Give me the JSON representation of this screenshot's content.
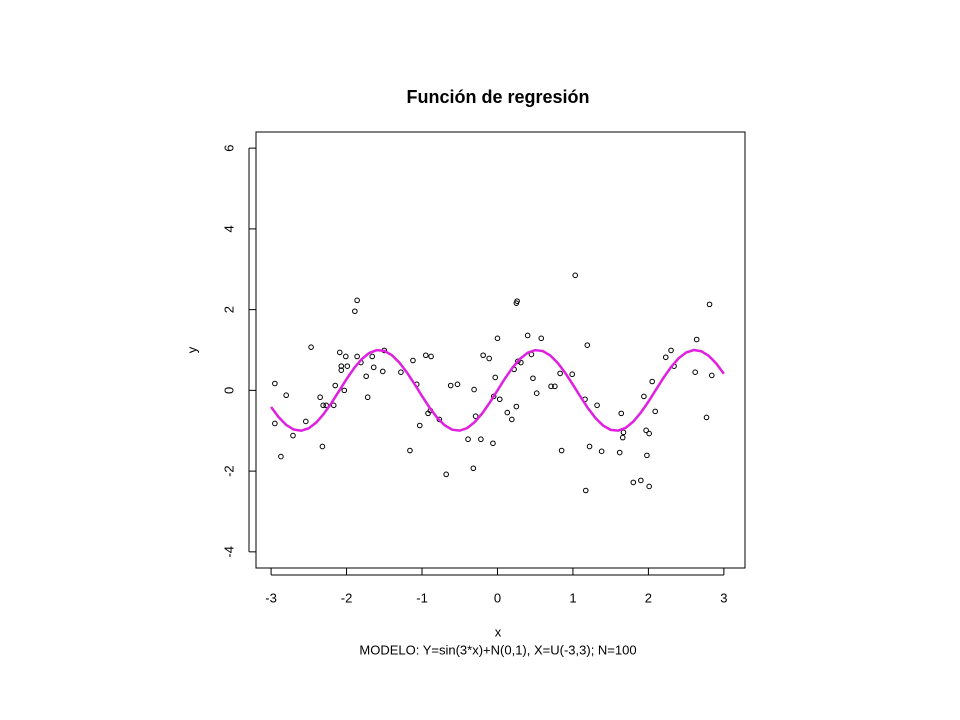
{
  "chart_data": {
    "type": "scatter",
    "title": "Función de regresión",
    "x_label": "x",
    "y_label": "y",
    "subtitle": "MODELO: Y=sin(3*x)+N(0,1), X=U(-3,3);  N=100",
    "xlim": [
      -3.2,
      3.28
    ],
    "ylim": [
      -4.4,
      6.4
    ],
    "xticks": [
      -3,
      -2,
      -1,
      0,
      1,
      2,
      3
    ],
    "yticks": [
      -4,
      -2,
      0,
      2,
      4,
      6
    ],
    "series": [
      {
        "type": "scatter",
        "color": "#000000",
        "x": [
          -2.95,
          -2.95,
          -2.87,
          -2.8,
          -2.71,
          -2.54,
          -2.47,
          -2.35,
          -2.32,
          -2.31,
          -2.27,
          -2.17,
          -2.15,
          -2.09,
          -2.07,
          -2.07,
          -2.03,
          -2.01,
          -1.99,
          -1.89,
          -1.86,
          -1.86,
          -1.81,
          -1.74,
          -1.72,
          -1.66,
          -1.64,
          -1.52,
          -1.5,
          -1.28,
          -1.16,
          -1.12,
          -1.07,
          -1.03,
          -0.95,
          -0.92,
          -0.89,
          -0.88,
          -0.77,
          -0.68,
          -0.62,
          -0.53,
          -0.39,
          -0.32,
          -0.31,
          -0.29,
          -0.22,
          -0.19,
          -0.11,
          -0.06,
          -0.05,
          -0.03,
          0.0,
          0.03,
          0.13,
          0.19,
          0.22,
          0.25,
          0.26,
          0.25,
          0.27,
          0.31,
          0.4,
          0.45,
          0.47,
          0.52,
          0.58,
          0.71,
          0.76,
          0.83,
          0.85,
          0.99,
          1.03,
          1.16,
          1.17,
          1.19,
          1.22,
          1.32,
          1.38,
          1.62,
          1.64,
          1.66,
          1.67,
          1.8,
          1.9,
          1.94,
          1.97,
          1.98,
          2.01,
          2.01,
          2.05,
          2.09,
          2.23,
          2.3,
          2.34,
          2.62,
          2.64,
          2.77,
          2.81,
          2.84
        ],
        "values": [
          0.17,
          -0.82,
          -1.64,
          -0.12,
          -1.12,
          -0.77,
          1.07,
          -0.17,
          -1.39,
          -0.37,
          -0.37,
          -0.37,
          0.12,
          0.94,
          0.6,
          0.5,
          0.0,
          0.84,
          0.6,
          1.96,
          2.23,
          0.84,
          0.69,
          0.35,
          -0.17,
          0.84,
          0.57,
          0.47,
          0.99,
          0.45,
          -1.49,
          0.74,
          0.15,
          -0.87,
          0.87,
          -0.57,
          -0.5,
          0.84,
          -0.72,
          -2.08,
          0.12,
          0.15,
          -1.21,
          -1.93,
          0.02,
          -0.64,
          -1.21,
          0.87,
          0.79,
          -1.31,
          -0.15,
          0.32,
          1.29,
          -0.22,
          -0.55,
          -0.72,
          0.52,
          2.16,
          2.21,
          -0.4,
          0.72,
          0.69,
          1.36,
          0.89,
          0.3,
          -0.07,
          1.29,
          0.1,
          0.1,
          0.42,
          -1.49,
          0.4,
          2.85,
          -0.22,
          -2.48,
          1.12,
          -1.39,
          -0.37,
          -1.51,
          -1.54,
          -0.57,
          -1.17,
          -1.04,
          -2.28,
          -2.23,
          -0.15,
          -0.99,
          -1.61,
          -2.38,
          -1.07,
          0.22,
          -0.52,
          0.82,
          0.99,
          0.6,
          0.45,
          1.26,
          -0.67,
          2.13,
          0.37
        ]
      },
      {
        "type": "line",
        "color": "#e020e0",
        "x": [
          -3,
          -2.9,
          -2.8,
          -2.7,
          -2.6,
          -2.5,
          -2.4,
          -2.3,
          -2.2,
          -2.1,
          -2,
          -1.9,
          -1.8,
          -1.7,
          -1.6,
          -1.5,
          -1.4,
          -1.3,
          -1.2,
          -1.1,
          -1,
          -0.9,
          -0.8,
          -0.7,
          -0.6,
          -0.5,
          -0.4,
          -0.3,
          -0.2,
          -0.1,
          0,
          0.1,
          0.2,
          0.3,
          0.4,
          0.5,
          0.6,
          0.7,
          0.8,
          0.9,
          1,
          1.1,
          1.2,
          1.3,
          1.4,
          1.5,
          1.6,
          1.7,
          1.8,
          1.9,
          2,
          2.1,
          2.2,
          2.3,
          2.4,
          2.5,
          2.6,
          2.7,
          2.8,
          2.9,
          3
        ],
        "values": [
          -0.412,
          -0.663,
          -0.855,
          -0.97,
          -0.999,
          -0.938,
          -0.794,
          -0.578,
          -0.312,
          -0.017,
          0.279,
          0.551,
          0.773,
          0.926,
          0.996,
          0.978,
          0.872,
          0.688,
          0.443,
          0.158,
          -0.141,
          -0.427,
          -0.675,
          -0.863,
          -0.974,
          -0.997,
          -0.932,
          -0.783,
          -0.565,
          -0.296,
          0,
          0.296,
          0.565,
          0.783,
          0.932,
          0.997,
          0.974,
          0.863,
          0.675,
          0.427,
          0.141,
          -0.158,
          -0.443,
          -0.688,
          -0.872,
          -0.978,
          -0.996,
          -0.926,
          -0.773,
          -0.551,
          -0.279,
          0.017,
          0.312,
          0.578,
          0.794,
          0.938,
          0.999,
          0.97,
          0.855,
          0.663,
          0.412
        ]
      }
    ]
  }
}
